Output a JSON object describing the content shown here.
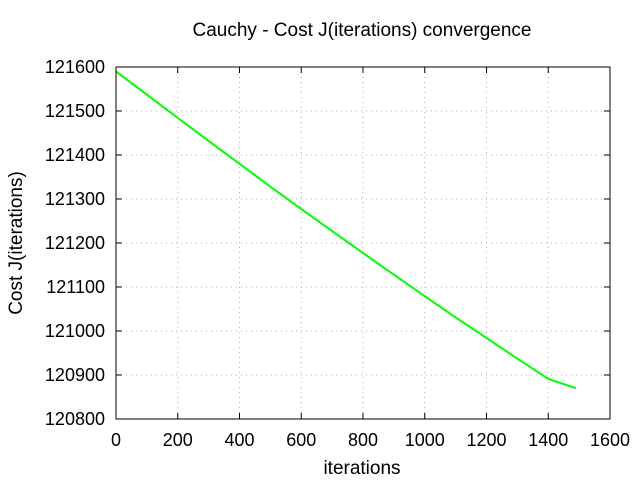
{
  "chart_data": {
    "type": "line",
    "title": "Cauchy - Cost J(iterations) convergence",
    "xlabel": "iterations",
    "ylabel": "Cost J(iterations)",
    "xlim": [
      0,
      1600
    ],
    "ylim": [
      120800,
      121600
    ],
    "xticks": [
      "0",
      "200",
      "400",
      "600",
      "800",
      "1000",
      "1200",
      "1400",
      "1600"
    ],
    "yticks": [
      "121600",
      "121500",
      "121400",
      "121300",
      "121200",
      "121100",
      "121000",
      "120900",
      "120800"
    ],
    "grid": true,
    "series": [
      {
        "color": "#00ff00",
        "x": [
          0,
          100,
          200,
          300,
          400,
          500,
          600,
          700,
          800,
          900,
          1000,
          1100,
          1200,
          1300,
          1400,
          1490
        ],
        "y": [
          121590,
          121537,
          121484,
          121432,
          121380,
          121328,
          121277,
          121227,
          121177,
          121128,
          121079,
          121031,
          120984,
          120937,
          120891,
          120870
        ]
      }
    ]
  }
}
